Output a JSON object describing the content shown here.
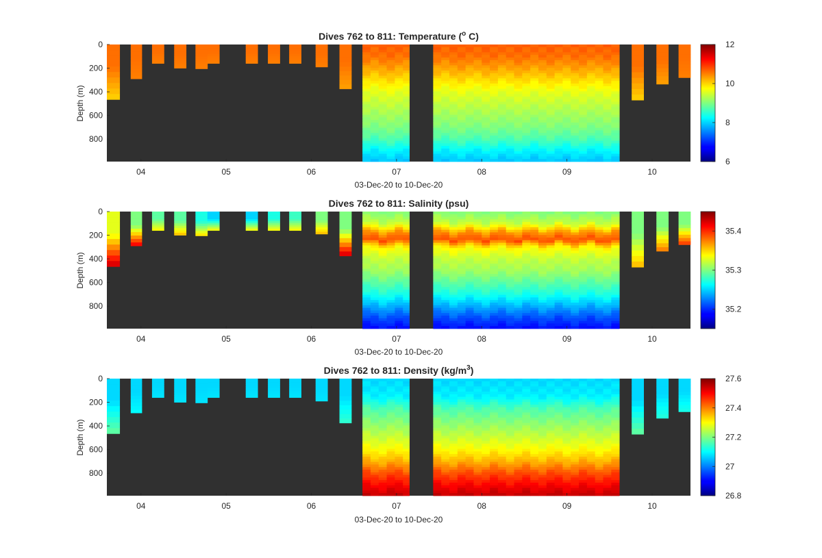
{
  "colors": {
    "background": "#ffffff",
    "no_data": "#303030",
    "axis": "#262626",
    "colormap": "jet"
  },
  "chart_data": [
    {
      "type": "heatmap",
      "title_main": "Dives 762 to 811: Temperature (",
      "title_sup": "o",
      "title_end": " C)",
      "xlabel": "03-Dec-20 to 10-Dec-20",
      "ylabel": "Depth (m)",
      "xlim": [
        3.6,
        10.45
      ],
      "ylim": [
        0,
        990
      ],
      "x_ticks": [
        4,
        5,
        6,
        7,
        8,
        9,
        10
      ],
      "x_tick_labels": [
        "04",
        "05",
        "06",
        "07",
        "08",
        "09",
        "10"
      ],
      "y_ticks": [
        0,
        200,
        400,
        600,
        800
      ],
      "y_tick_labels": [
        "0",
        "200",
        "400",
        "600",
        "800"
      ],
      "clim": [
        6,
        12
      ],
      "c_ticks": [
        6,
        8,
        10,
        12
      ],
      "c_tick_labels": [
        "6",
        "8",
        "10",
        "12"
      ],
      "short_dives": [
        {
          "x0": 3.6,
          "x1": 3.75,
          "depth": 465,
          "surface": 10.6,
          "bottom": 10.0
        },
        {
          "x0": 3.88,
          "x1": 4.01,
          "depth": 290,
          "surface": 10.6,
          "bottom": 10.5
        },
        {
          "x0": 4.13,
          "x1": 4.27,
          "depth": 160,
          "surface": 10.6,
          "bottom": 10.5
        },
        {
          "x0": 4.39,
          "x1": 4.53,
          "depth": 200,
          "surface": 10.6,
          "bottom": 10.5
        },
        {
          "x0": 4.64,
          "x1": 4.78,
          "depth": 205,
          "surface": 10.6,
          "bottom": 10.5
        },
        {
          "x0": 4.78,
          "x1": 4.92,
          "depth": 160,
          "surface": 10.6,
          "bottom": 10.5
        },
        {
          "x0": 5.23,
          "x1": 5.37,
          "depth": 160,
          "surface": 10.6,
          "bottom": 10.5
        },
        {
          "x0": 5.49,
          "x1": 5.63,
          "depth": 160,
          "surface": 10.6,
          "bottom": 10.5
        },
        {
          "x0": 5.74,
          "x1": 5.88,
          "depth": 160,
          "surface": 10.6,
          "bottom": 10.5
        },
        {
          "x0": 6.05,
          "x1": 6.19,
          "depth": 190,
          "surface": 10.6,
          "bottom": 10.5
        },
        {
          "x0": 6.33,
          "x1": 6.47,
          "depth": 375,
          "surface": 10.6,
          "bottom": 10.3
        },
        {
          "x0": 9.76,
          "x1": 9.9,
          "depth": 470,
          "surface": 10.6,
          "bottom": 10.0
        },
        {
          "x0": 10.05,
          "x1": 10.19,
          "depth": 335,
          "surface": 10.6,
          "bottom": 10.3
        },
        {
          "x0": 10.31,
          "x1": 10.45,
          "depth": 280,
          "surface": 10.6,
          "bottom": 10.5
        }
      ],
      "continuous": [
        {
          "x0": 6.6,
          "x1": 7.15
        },
        {
          "x0": 7.43,
          "x1": 9.64
        }
      ],
      "profile": [
        [
          0,
          10.7
        ],
        [
          100,
          10.6
        ],
        [
          200,
          10.3
        ],
        [
          300,
          9.95
        ],
        [
          400,
          9.6
        ],
        [
          500,
          9.4
        ],
        [
          600,
          9.2
        ],
        [
          700,
          9.0
        ],
        [
          800,
          8.7
        ],
        [
          900,
          8.2
        ],
        [
          990,
          7.9
        ]
      ]
    },
    {
      "type": "heatmap",
      "title_main": "Dives 762 to 811: Salinity (psu)",
      "title_sup": "",
      "title_end": "",
      "xlabel": "03-Dec-20 to 10-Dec-20",
      "ylabel": "Depth (m)",
      "xlim": [
        3.6,
        10.45
      ],
      "ylim": [
        0,
        990
      ],
      "x_ticks": [
        4,
        5,
        6,
        7,
        8,
        9,
        10
      ],
      "x_tick_labels": [
        "04",
        "05",
        "06",
        "07",
        "08",
        "09",
        "10"
      ],
      "y_ticks": [
        0,
        200,
        400,
        600,
        800
      ],
      "y_tick_labels": [
        "0",
        "200",
        "400",
        "600",
        "800"
      ],
      "clim": [
        35.15,
        35.45
      ],
      "c_ticks": [
        35.2,
        35.3,
        35.4
      ],
      "c_tick_labels": [
        "35.2",
        "35.3",
        "35.4"
      ],
      "short_dives": [
        {
          "x0": 3.6,
          "x1": 3.75,
          "depth": 465,
          "surface": 35.33,
          "bottom": 35.43
        },
        {
          "x0": 3.88,
          "x1": 4.01,
          "depth": 290,
          "surface": 35.3,
          "bottom": 35.42
        },
        {
          "x0": 4.13,
          "x1": 4.27,
          "depth": 160,
          "surface": 35.29,
          "bottom": 35.34
        },
        {
          "x0": 4.39,
          "x1": 4.53,
          "depth": 200,
          "surface": 35.29,
          "bottom": 35.36
        },
        {
          "x0": 4.64,
          "x1": 4.78,
          "depth": 205,
          "surface": 35.27,
          "bottom": 35.35
        },
        {
          "x0": 4.78,
          "x1": 4.92,
          "depth": 160,
          "surface": 35.25,
          "bottom": 35.34
        },
        {
          "x0": 5.23,
          "x1": 5.37,
          "depth": 160,
          "surface": 35.25,
          "bottom": 35.34
        },
        {
          "x0": 5.49,
          "x1": 5.63,
          "depth": 160,
          "surface": 35.27,
          "bottom": 35.34
        },
        {
          "x0": 5.74,
          "x1": 5.88,
          "depth": 160,
          "surface": 35.28,
          "bottom": 35.34
        },
        {
          "x0": 6.05,
          "x1": 6.19,
          "depth": 190,
          "surface": 35.3,
          "bottom": 35.36
        },
        {
          "x0": 6.33,
          "x1": 6.47,
          "depth": 375,
          "surface": 35.3,
          "bottom": 35.43
        },
        {
          "x0": 9.76,
          "x1": 9.9,
          "depth": 470,
          "surface": 35.3,
          "bottom": 35.36
        },
        {
          "x0": 10.05,
          "x1": 10.19,
          "depth": 335,
          "surface": 35.3,
          "bottom": 35.38
        },
        {
          "x0": 10.31,
          "x1": 10.45,
          "depth": 280,
          "surface": 35.3,
          "bottom": 35.4
        }
      ],
      "continuous": [
        {
          "x0": 6.6,
          "x1": 7.15
        },
        {
          "x0": 7.43,
          "x1": 9.64
        }
      ],
      "profile": [
        [
          0,
          35.3
        ],
        [
          100,
          35.32
        ],
        [
          180,
          35.37
        ],
        [
          240,
          35.39
        ],
        [
          300,
          35.34
        ],
        [
          400,
          35.32
        ],
        [
          500,
          35.31
        ],
        [
          600,
          35.29
        ],
        [
          700,
          35.27
        ],
        [
          800,
          35.24
        ],
        [
          900,
          35.21
        ],
        [
          990,
          35.19
        ]
      ]
    },
    {
      "type": "heatmap",
      "title_main": "Dives 762 to 811: Density (kg/m",
      "title_sup": "3",
      "title_end": ")",
      "xlabel": "03-Dec-20 to 10-Dec-20",
      "ylabel": "Depth (m)",
      "xlim": [
        3.6,
        10.45
      ],
      "ylim": [
        0,
        990
      ],
      "x_ticks": [
        4,
        5,
        6,
        7,
        8,
        9,
        10
      ],
      "x_tick_labels": [
        "04",
        "05",
        "06",
        "07",
        "08",
        "09",
        "10"
      ],
      "y_ticks": [
        0,
        200,
        400,
        600,
        800
      ],
      "y_tick_labels": [
        "0",
        "200",
        "400",
        "600",
        "800"
      ],
      "clim": [
        26.8,
        27.6
      ],
      "c_ticks": [
        26.8,
        27,
        27.2,
        27.4,
        27.6
      ],
      "c_tick_labels": [
        "26.8",
        "27",
        "27.2",
        "27.4",
        "27.6"
      ],
      "short_dives": [
        {
          "x0": 3.6,
          "x1": 3.75,
          "depth": 465,
          "surface": 27.07,
          "bottom": 27.18
        },
        {
          "x0": 3.88,
          "x1": 4.01,
          "depth": 290,
          "surface": 27.07,
          "bottom": 27.1
        },
        {
          "x0": 4.13,
          "x1": 4.27,
          "depth": 160,
          "surface": 27.07,
          "bottom": 27.08
        },
        {
          "x0": 4.39,
          "x1": 4.53,
          "depth": 200,
          "surface": 27.07,
          "bottom": 27.08
        },
        {
          "x0": 4.64,
          "x1": 4.78,
          "depth": 205,
          "surface": 27.07,
          "bottom": 27.08
        },
        {
          "x0": 4.78,
          "x1": 4.92,
          "depth": 160,
          "surface": 27.07,
          "bottom": 27.08
        },
        {
          "x0": 5.23,
          "x1": 5.37,
          "depth": 160,
          "surface": 27.07,
          "bottom": 27.08
        },
        {
          "x0": 5.49,
          "x1": 5.63,
          "depth": 160,
          "surface": 27.07,
          "bottom": 27.08
        },
        {
          "x0": 5.74,
          "x1": 5.88,
          "depth": 160,
          "surface": 27.07,
          "bottom": 27.08
        },
        {
          "x0": 6.05,
          "x1": 6.19,
          "depth": 190,
          "surface": 27.07,
          "bottom": 27.08
        },
        {
          "x0": 6.33,
          "x1": 6.47,
          "depth": 375,
          "surface": 27.07,
          "bottom": 27.14
        },
        {
          "x0": 9.76,
          "x1": 9.9,
          "depth": 470,
          "surface": 27.07,
          "bottom": 27.18
        },
        {
          "x0": 10.05,
          "x1": 10.19,
          "depth": 335,
          "surface": 27.07,
          "bottom": 27.13
        },
        {
          "x0": 10.31,
          "x1": 10.45,
          "depth": 280,
          "surface": 27.07,
          "bottom": 27.12
        }
      ],
      "continuous": [
        {
          "x0": 6.6,
          "x1": 7.15
        },
        {
          "x0": 7.43,
          "x1": 9.64
        }
      ],
      "profile": [
        [
          0,
          27.07
        ],
        [
          150,
          27.09
        ],
        [
          250,
          27.16
        ],
        [
          400,
          27.22
        ],
        [
          500,
          27.26
        ],
        [
          600,
          27.3
        ],
        [
          700,
          27.36
        ],
        [
          800,
          27.44
        ],
        [
          900,
          27.5
        ],
        [
          990,
          27.55
        ]
      ]
    }
  ]
}
